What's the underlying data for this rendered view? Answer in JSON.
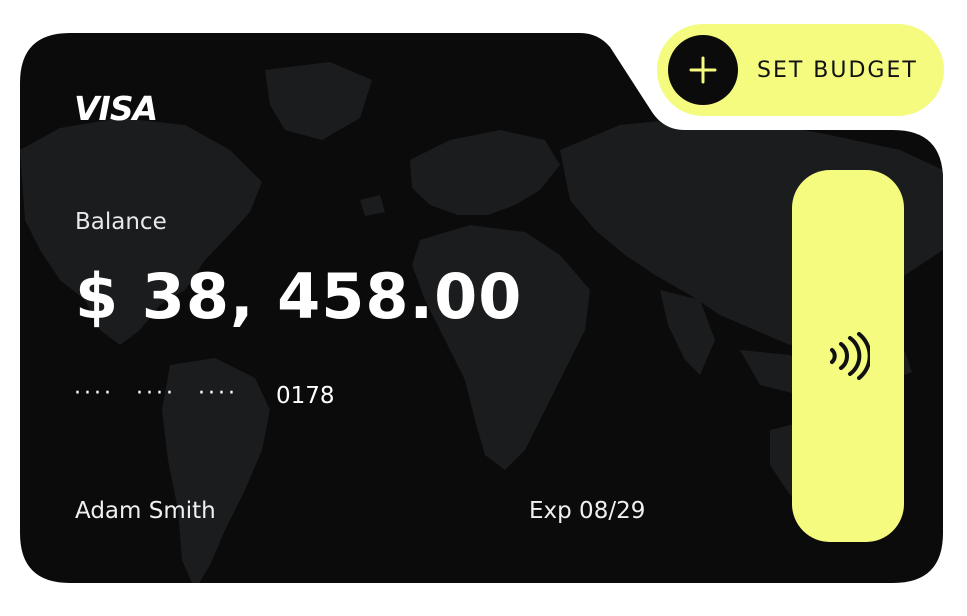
{
  "card": {
    "brand": "VISA",
    "balance_label": "Balance",
    "balance_amount": "$ 38, 458.00",
    "masked_groups": [
      "····",
      "····",
      "····"
    ],
    "last4": "0178",
    "holder_name": "Adam Smith",
    "expiry": "Exp 08/29"
  },
  "actions": {
    "set_budget_label": "SET BUDGET",
    "set_budget_icon": "plus-icon",
    "contactless_icon": "contactless-icon"
  },
  "colors": {
    "card_background": "#0b0b0b",
    "map_overlay": "#1a1c1e",
    "accent": "#f4fb7f",
    "text_primary": "#ffffff"
  }
}
